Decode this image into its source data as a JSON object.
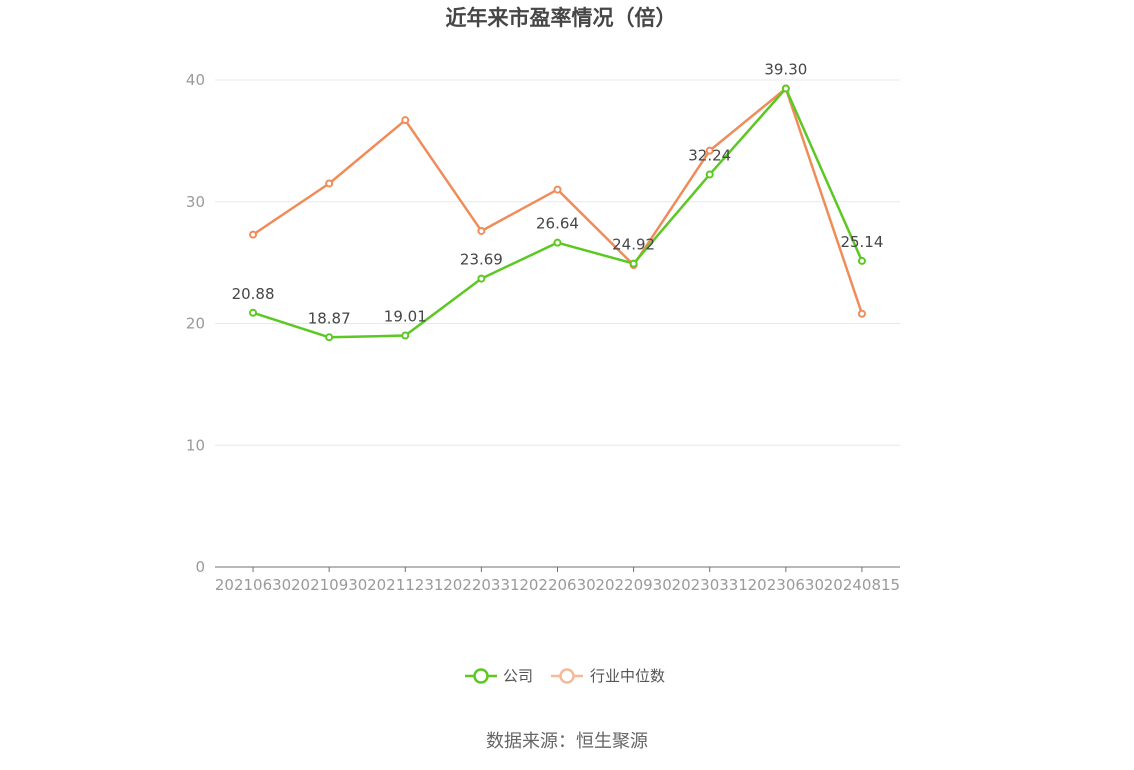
{
  "chart_data": {
    "type": "line",
    "title": "近年来市盈率情况（倍）",
    "xlabel": "",
    "ylabel": "",
    "categories": [
      "20210630",
      "20210930",
      "20211231",
      "20220331",
      "20220630",
      "20220930",
      "20230331",
      "20230630",
      "20240815"
    ],
    "ylim": [
      0,
      40
    ],
    "yticks": [
      0,
      10,
      20,
      30,
      40
    ],
    "grid": true,
    "legend_position": "bottom-center",
    "series": [
      {
        "name": "公司",
        "color": "#5cc823",
        "values": [
          20.88,
          18.87,
          19.01,
          23.69,
          26.64,
          24.92,
          32.24,
          39.3,
          25.14
        ],
        "labels": [
          "20.88",
          "18.87",
          "19.01",
          "23.69",
          "26.64",
          "24.92",
          "32.24",
          "39.30",
          "25.14"
        ]
      },
      {
        "name": "行业中位数",
        "color": "#f08c5a",
        "values": [
          27.3,
          31.5,
          36.7,
          27.6,
          31.0,
          24.8,
          34.2,
          39.3,
          20.8
        ]
      }
    ],
    "source": "数据来源：恒生聚源"
  }
}
